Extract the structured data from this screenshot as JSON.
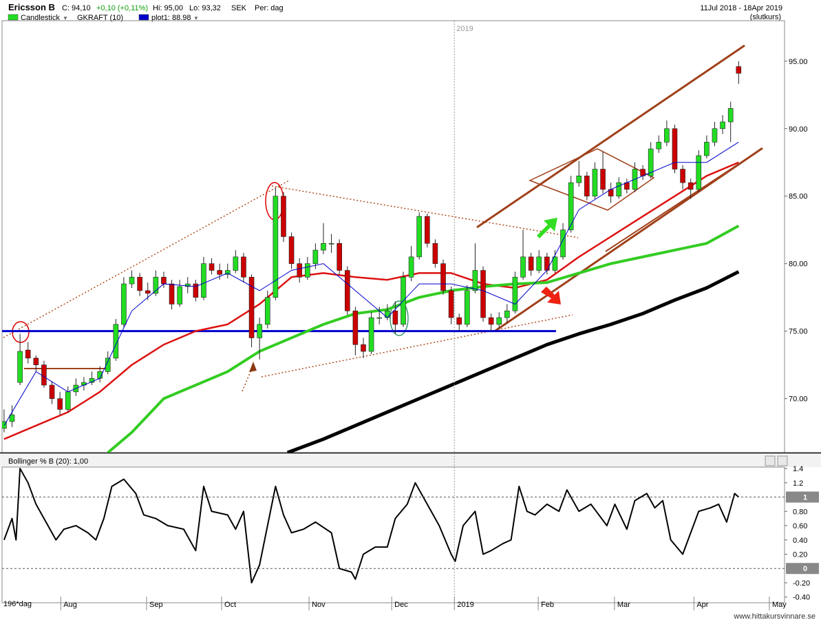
{
  "header": {
    "symbol": "Ericsson B",
    "close": "C: 94,10",
    "change": "+0,10 (+0,11%)",
    "high": "Hi: 95,00",
    "low": "Lo: 93,32",
    "currency": "SEK",
    "period": "Per: dag",
    "range": "11Jul 2018 - 18Apr 2019",
    "price_type": "(slutkurs)",
    "indicator": "GKRAFT (10)"
  },
  "footer": "www.hittakursvinnare.se",
  "chart_data": [
    {
      "type": "candlestick",
      "xlim": [
        -0.5,
        195.5
      ],
      "ylim": [
        66,
        98
      ],
      "yticks": [
        {
          "value": 70,
          "label": "70.00"
        },
        {
          "value": 75,
          "label": "75.00"
        },
        {
          "value": 80,
          "label": "80.00"
        },
        {
          "value": 85,
          "label": "85.00"
        },
        {
          "value": 90,
          "label": "90.00"
        },
        {
          "value": 95,
          "label": "95.00"
        }
      ],
      "hline": {
        "value": 75,
        "color": "#0000cc"
      },
      "series": [
        {
          "name": "Candlestick",
          "color": "#22dd22",
          "down_color": "#cc0000",
          "x": [
            0,
            2,
            4,
            6,
            8,
            10,
            12,
            14,
            16,
            18,
            20,
            22,
            24,
            26,
            28,
            30,
            32,
            34,
            36,
            38,
            40,
            42,
            44,
            46,
            48,
            50,
            52,
            54,
            56,
            58,
            60,
            62,
            64,
            66,
            68,
            70,
            72,
            74,
            76,
            78,
            80,
            82,
            84,
            86,
            88,
            90,
            92,
            94,
            96,
            98,
            100,
            102,
            104,
            106,
            108,
            110,
            112,
            114,
            116,
            118,
            120,
            122,
            124,
            126,
            128,
            130,
            132,
            134,
            136,
            138,
            140,
            142,
            144,
            146,
            148,
            150,
            152,
            154,
            156,
            158,
            160,
            162,
            164,
            166,
            168,
            170,
            172,
            174,
            176,
            178,
            180,
            182,
            184
          ],
          "open": [
            67.8,
            68.3,
            71.2,
            73.6,
            73,
            72.5,
            71,
            70,
            69.2,
            70.5,
            71,
            71.2,
            71.5,
            72,
            73,
            75.5,
            78.5,
            79,
            78,
            77.8,
            79,
            78.5,
            77,
            78.3,
            78.5,
            77.5,
            80,
            79.5,
            79.2,
            79.5,
            80.5,
            79,
            74.5,
            75.5,
            77.5,
            85,
            82,
            80,
            79,
            80,
            81,
            81.5,
            81.5,
            79.5,
            76.5,
            74,
            73.5,
            76,
            76,
            76.5,
            75.5,
            79,
            80.5,
            83.5,
            81.5,
            80,
            78,
            76,
            75.5,
            78,
            79.5,
            76,
            75.5,
            76,
            76.5,
            79,
            80.5,
            79.5,
            80.5,
            79.5,
            80.5,
            82.5,
            86,
            86.5,
            85,
            87,
            85.5,
            85,
            86,
            85.5,
            87,
            86.5,
            88.5,
            89,
            90,
            87,
            86,
            85.5,
            88,
            89,
            90,
            90.5,
            94.6
          ],
          "high": [
            69.2,
            69.5,
            74.8,
            74.2,
            73.2,
            72.8,
            71.3,
            70.5,
            70.9,
            71.5,
            71.6,
            72,
            72.4,
            73.5,
            75.9,
            79,
            79.5,
            79.3,
            78.6,
            79.5,
            79.4,
            78.8,
            78.8,
            79,
            78.8,
            80.5,
            80.4,
            80,
            80,
            81,
            80.8,
            79.2,
            76,
            78,
            85.6,
            85.3,
            82.3,
            80.4,
            80.5,
            81.5,
            83,
            82.2,
            81.8,
            79.8,
            76.8,
            74.5,
            76.4,
            76.8,
            77,
            77.2,
            79.4,
            81.3,
            83.8,
            83.7,
            81.8,
            80.3,
            78.3,
            76.3,
            78.4,
            81.5,
            79.8,
            76.3,
            76.4,
            77,
            79.4,
            82.5,
            80.8,
            81,
            80.8,
            81,
            83,
            86.5,
            87.6,
            86.8,
            87.5,
            88.3,
            86,
            86.4,
            86.3,
            87.5,
            87.3,
            89,
            89.5,
            90.6,
            90.3,
            87.3,
            86.3,
            88.4,
            89.5,
            90.5,
            91,
            92,
            95
          ],
          "low": [
            67.5,
            67.9,
            71,
            72.6,
            72,
            70.8,
            69.6,
            68.8,
            69,
            70.2,
            70.6,
            71,
            71.2,
            71.8,
            72.8,
            75.3,
            78.2,
            77.6,
            77.3,
            77.6,
            78.2,
            76.6,
            76.8,
            77.8,
            77.2,
            77.3,
            79.2,
            78.8,
            78.9,
            79.3,
            78.6,
            73.8,
            72.9,
            75.2,
            77.3,
            81.6,
            79.6,
            78.6,
            78.8,
            79.6,
            80.7,
            80.8,
            79.2,
            76.2,
            73.2,
            73,
            73.3,
            75.5,
            75.8,
            74.8,
            75.3,
            78.7,
            80.3,
            81.2,
            79.7,
            77.7,
            75.5,
            75,
            75.3,
            77.8,
            75.7,
            75,
            75.2,
            75.6,
            76.3,
            78.8,
            79.1,
            79.3,
            79.2,
            79.3,
            80.3,
            82.3,
            85.7,
            84.7,
            84.8,
            85.2,
            84.5,
            84.8,
            85.2,
            85.3,
            86.2,
            86.3,
            88.2,
            88.7,
            86.7,
            85.5,
            84.8,
            85.3,
            87.8,
            88.7,
            89.6,
            89,
            93.32
          ],
          "close": [
            68.3,
            68.8,
            73.5,
            73,
            72.5,
            71,
            70,
            69.2,
            70.5,
            71,
            71.2,
            71.5,
            72,
            73,
            75.5,
            78.5,
            79,
            78,
            77.8,
            79,
            78.5,
            77,
            78.3,
            78.5,
            77.5,
            80,
            79.5,
            79.2,
            79.5,
            80.5,
            79,
            74.5,
            75.5,
            77.5,
            85,
            82,
            80,
            79,
            80,
            81,
            81.5,
            81.5,
            79.5,
            76.5,
            74,
            73.5,
            76,
            76,
            76.5,
            75.5,
            79,
            80.5,
            83.5,
            81.5,
            80,
            78,
            76,
            75.5,
            78,
            79.5,
            76,
            75.5,
            76,
            76.5,
            79,
            80.5,
            79.5,
            80.5,
            79.5,
            80.5,
            82.5,
            86,
            86.5,
            85,
            87,
            85.5,
            85,
            86,
            85.5,
            87,
            86.5,
            88.5,
            89,
            90,
            87,
            86,
            85.5,
            88,
            89,
            90,
            90.5,
            91.5,
            94.1
          ]
        }
      ],
      "lines": [
        {
          "name": "plot1: 88.98",
          "color": "#0000cc",
          "width": 1,
          "x": [
            0,
            8,
            16,
            24,
            32,
            40,
            48,
            56,
            64,
            72,
            80,
            88,
            96,
            104,
            112,
            120,
            128,
            136,
            144,
            152,
            160,
            168,
            176,
            184
          ],
          "values": [
            68,
            72,
            70.5,
            71.5,
            76.5,
            78.5,
            78.3,
            79.3,
            78,
            79.5,
            80,
            78,
            76,
            78.5,
            78.5,
            78,
            77,
            79.5,
            84,
            85.5,
            86.5,
            87.5,
            87.5,
            89
          ]
        },
        {
          "color": "#dd1111",
          "width": 2.5,
          "x": [
            0,
            8,
            16,
            24,
            32,
            40,
            48,
            56,
            64,
            72,
            80,
            88,
            96,
            104,
            112,
            120,
            128,
            136,
            144,
            152,
            160,
            168,
            176,
            184
          ],
          "values": [
            67,
            68,
            69,
            70.5,
            72.5,
            74,
            75,
            75.5,
            77,
            79,
            79.3,
            79,
            78.8,
            79.3,
            79.3,
            78.5,
            78.2,
            78.8,
            80.5,
            82,
            83.5,
            85,
            86.5,
            87.5
          ]
        },
        {
          "color": "#33cc22",
          "width": 4,
          "x": [
            26,
            32,
            40,
            48,
            56,
            64,
            72,
            80,
            88,
            96,
            104,
            112,
            120,
            128,
            136,
            144,
            152,
            160,
            168,
            176,
            184
          ],
          "values": [
            66,
            67.5,
            70,
            71,
            72,
            73.5,
            74.5,
            75.5,
            76.3,
            76.6,
            77.5,
            78,
            78.3,
            78.5,
            78.6,
            79.3,
            80,
            80.5,
            81,
            81.5,
            82.8
          ]
        },
        {
          "color": "#000000",
          "width": 5,
          "x": [
            71,
            80,
            88,
            96,
            104,
            112,
            120,
            128,
            136,
            144,
            152,
            160,
            168,
            176,
            184
          ],
          "values": [
            66,
            67,
            68,
            69,
            70,
            71,
            72,
            73,
            74,
            74.8,
            75.5,
            76.3,
            77.3,
            78.2,
            79.4
          ]
        }
      ]
    },
    {
      "type": "line",
      "title": "Bollinger % B (20): 1,00",
      "xlabel": "196*dag",
      "color": "#000000",
      "xlim": [
        -0.5,
        195.5
      ],
      "ylim": [
        -0.48,
        1.42
      ],
      "yticks": [
        1.4,
        1.2,
        1,
        {
          "value": 0.8,
          "label": "0.80"
        },
        {
          "value": 0.6,
          "label": "0.60"
        },
        {
          "value": 0.4,
          "label": "0.40"
        },
        {
          "value": 0.2,
          "label": "0.20"
        },
        0,
        {
          "value": -0.2,
          "label": "-0.20"
        },
        {
          "value": -0.4,
          "label": "-0.40"
        }
      ],
      "xticks": [
        {
          "value": 14.2,
          "label": "Aug"
        },
        {
          "value": 35.7,
          "label": "Sep"
        },
        {
          "value": 54.5,
          "label": "Oct"
        },
        {
          "value": 76.4,
          "label": "Nov"
        },
        {
          "value": 97.1,
          "label": "Dec"
        },
        {
          "value": 112.8,
          "label": "2019"
        },
        {
          "value": 133.8,
          "label": "Feb"
        },
        {
          "value": 152.9,
          "label": "Mar"
        },
        {
          "value": 172.8,
          "label": "Apr"
        },
        {
          "value": 191.7,
          "label": "May"
        }
      ],
      "x": [
        0,
        2,
        3,
        4,
        6,
        8,
        11,
        13,
        15,
        18,
        21,
        23,
        25,
        27,
        30,
        33,
        35,
        38,
        41,
        45,
        48,
        50,
        52,
        56,
        58,
        60,
        62,
        64,
        68,
        70,
        72,
        75,
        78,
        82,
        84,
        87,
        88,
        90,
        93,
        96,
        98,
        101,
        103,
        106,
        109,
        112,
        113,
        115,
        118,
        120,
        122,
        125,
        127,
        129,
        131,
        133,
        136,
        139,
        141,
        144,
        147,
        151,
        153,
        156,
        158,
        161,
        163,
        165,
        167,
        170,
        172,
        174,
        177,
        179,
        181,
        183,
        184
      ],
      "values": [
        0.4,
        0.7,
        0.4,
        1.4,
        1.2,
        0.9,
        0.6,
        0.4,
        0.55,
        0.6,
        0.5,
        0.4,
        0.7,
        1.15,
        1.25,
        1.05,
        0.75,
        0.7,
        0.6,
        0.55,
        0.25,
        1.15,
        0.8,
        0.75,
        0.55,
        0.8,
        -0.2,
        0.05,
        1.15,
        0.75,
        0.5,
        0.55,
        0.65,
        0.5,
        0,
        -0.05,
        -0.15,
        0.2,
        0.3,
        0.3,
        0.7,
        0.9,
        1.2,
        0.9,
        0.6,
        0.2,
        0.1,
        0.6,
        0.8,
        0.2,
        0.25,
        0.35,
        0.4,
        1.15,
        0.8,
        0.75,
        0.9,
        0.8,
        1.1,
        0.8,
        0.9,
        0.6,
        0.9,
        0.55,
        0.95,
        1.05,
        0.85,
        0.95,
        0.4,
        0.2,
        0.5,
        0.8,
        0.85,
        0.9,
        0.65,
        1.05,
        1.0
      ]
    }
  ]
}
